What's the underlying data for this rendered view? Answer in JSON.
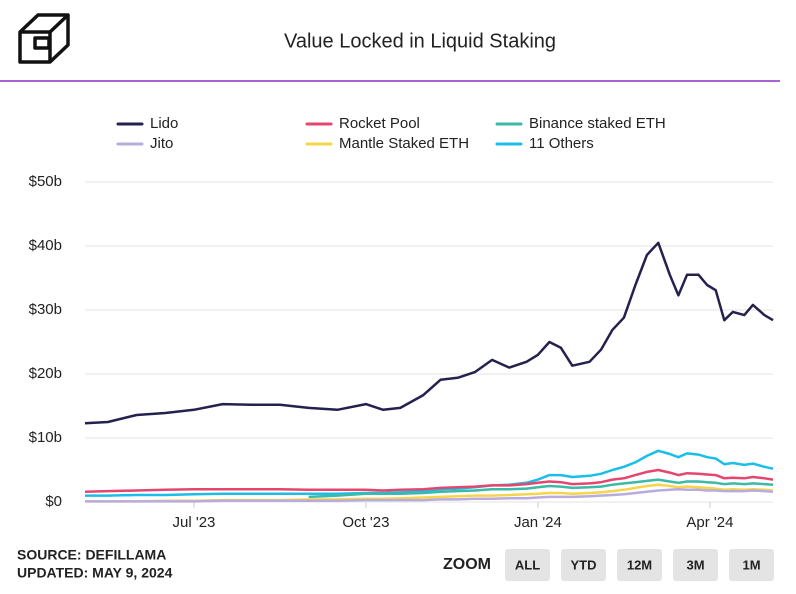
{
  "chart_data": {
    "type": "line",
    "title": "Value Locked in Liquid Staking",
    "x": [
      4.1,
      4.5,
      5,
      5.5,
      6,
      6.5,
      7,
      7.5,
      8,
      8.5,
      9,
      9.3,
      9.6,
      10,
      10.3,
      10.6,
      10.9,
      11.2,
      11.5,
      11.8,
      12,
      12.2,
      12.4,
      12.6,
      12.9,
      13.1,
      13.3,
      13.5,
      13.7,
      13.9,
      14.1,
      14.3,
      14.45,
      14.6,
      14.8,
      14.95,
      15.1,
      15.25,
      15.4,
      15.6,
      15.75,
      15.95,
      16.1
    ],
    "xlim": [
      4.1,
      16.1
    ],
    "xticks": [
      {
        "value": 6,
        "label": "Jul '23"
      },
      {
        "value": 9,
        "label": "Oct '23"
      },
      {
        "value": 12,
        "label": "Jan '24"
      },
      {
        "value": 15,
        "label": "Apr '24"
      }
    ],
    "ylim": [
      0,
      50
    ],
    "yticks": [
      {
        "value": 0,
        "label": "$0"
      },
      {
        "value": 10,
        "label": "$10b"
      },
      {
        "value": 20,
        "label": "$20b"
      },
      {
        "value": 30,
        "label": "$30b"
      },
      {
        "value": 40,
        "label": "$40b"
      },
      {
        "value": 50,
        "label": "$50b"
      }
    ],
    "grid": true,
    "legend": "top",
    "series": [
      {
        "name": "Lido",
        "color": "#25214f",
        "values": [
          12.3,
          12.5,
          13.6,
          13.9,
          14.4,
          15.3,
          15.2,
          15.2,
          14.7,
          14.4,
          15.3,
          14.4,
          14.7,
          16.7,
          19.1,
          19.4,
          20.3,
          22.2,
          21,
          21.9,
          23,
          25,
          24.1,
          21.3,
          21.9,
          23.8,
          26.9,
          28.8,
          33.9,
          38.6,
          40.5,
          35.5,
          32.3,
          35.5,
          35.5,
          33.9,
          33.1,
          28.4,
          29.7,
          29.2,
          30.8,
          29.2,
          28.4
        ]
      },
      {
        "name": "Jito",
        "color": "#b8acdf",
        "values": [
          0.1,
          0.1,
          0.1,
          0.1,
          0.1,
          0.2,
          0.2,
          0.2,
          0.2,
          0.2,
          0.3,
          0.3,
          0.3,
          0.3,
          0.4,
          0.4,
          0.5,
          0.5,
          0.6,
          0.6,
          0.7,
          0.8,
          0.8,
          0.8,
          0.9,
          1.0,
          1.1,
          1.2,
          1.4,
          1.6,
          1.8,
          1.9,
          2.0,
          1.9,
          1.9,
          1.8,
          1.8,
          1.7,
          1.7,
          1.7,
          1.8,
          1.7,
          1.6
        ]
      },
      {
        "name": "Rocket Pool",
        "color": "#e5466e",
        "values": [
          1.6,
          1.7,
          1.8,
          1.9,
          2.0,
          2.0,
          2.0,
          2.0,
          1.9,
          1.9,
          1.9,
          1.8,
          1.9,
          2.0,
          2.2,
          2.3,
          2.4,
          2.6,
          2.6,
          2.8,
          3.0,
          3.2,
          3.1,
          2.8,
          2.9,
          3.1,
          3.5,
          3.7,
          4.2,
          4.7,
          5.0,
          4.6,
          4.2,
          4.5,
          4.4,
          4.3,
          4.2,
          3.7,
          3.8,
          3.7,
          3.9,
          3.7,
          3.5
        ]
      },
      {
        "name": "Mantle Staked ETH",
        "color": "#f6d54b",
        "values": [
          0.1,
          0.1,
          0.1,
          0.2,
          0.2,
          0.3,
          0.3,
          0.3,
          0.4,
          0.4,
          0.5,
          0.5,
          0.6,
          0.7,
          0.8,
          0.9,
          1.0,
          1.0,
          1.1,
          1.2,
          1.3,
          1.4,
          1.4,
          1.3,
          1.4,
          1.5,
          1.7,
          1.9,
          2.2,
          2.5,
          2.7,
          2.5,
          2.3,
          2.4,
          2.3,
          2.2,
          2.1,
          1.9,
          2.0,
          1.9,
          2.0,
          1.9,
          1.8
        ]
      },
      {
        "name": "Binance staked ETH",
        "color": "#3cb9a7",
        "values": [
          null,
          null,
          null,
          null,
          null,
          null,
          null,
          null,
          0.8,
          1.0,
          1.3,
          1.3,
          1.3,
          1.4,
          1.6,
          1.7,
          1.8,
          2.0,
          2.0,
          2.1,
          2.3,
          2.5,
          2.4,
          2.2,
          2.3,
          2.4,
          2.7,
          2.9,
          3.1,
          3.3,
          3.5,
          3.2,
          3.0,
          3.2,
          3.2,
          3.1,
          3.0,
          2.8,
          2.9,
          2.8,
          2.9,
          2.8,
          2.7
        ]
      },
      {
        "name": "11 Others",
        "color": "#1bbde9",
        "values": [
          1.0,
          1.0,
          1.1,
          1.1,
          1.2,
          1.3,
          1.3,
          1.3,
          1.3,
          1.3,
          1.4,
          1.4,
          1.5,
          1.7,
          2.0,
          2.1,
          2.3,
          2.6,
          2.7,
          3.0,
          3.5,
          4.2,
          4.2,
          3.9,
          4.1,
          4.4,
          5.0,
          5.5,
          6.2,
          7.2,
          8.0,
          7.5,
          7.0,
          7.6,
          7.4,
          7.0,
          6.8,
          5.9,
          6.1,
          5.8,
          6.0,
          5.5,
          5.2
        ]
      }
    ]
  },
  "footer": {
    "source": "SOURCE: DEFILLAMA",
    "updated": "UPDATED: MAY 9, 2024"
  },
  "zoom": {
    "label": "ZOOM",
    "buttons": [
      "ALL",
      "YTD",
      "12M",
      "3M",
      "1M"
    ]
  }
}
